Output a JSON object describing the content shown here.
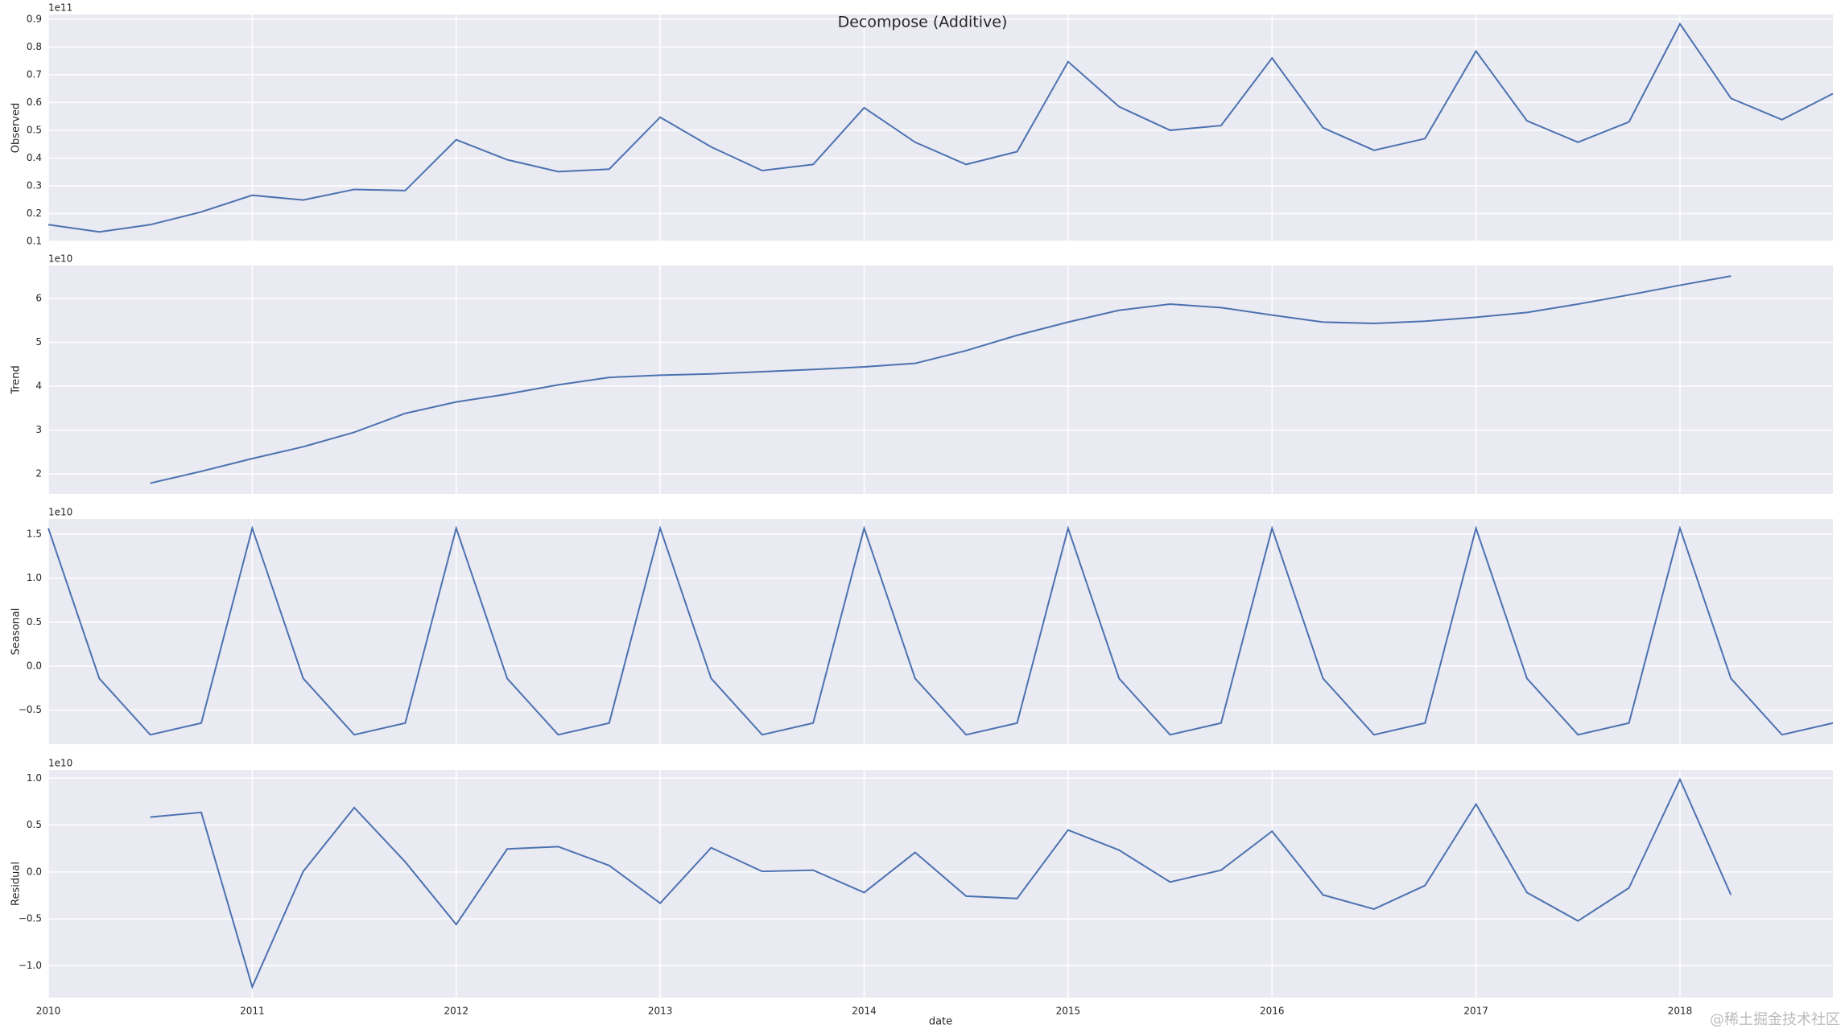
{
  "title": "Decompose (Additive)",
  "watermark": "@稀土掘金技术社区",
  "chart_data": [
    {
      "type": "line",
      "ylabel": "Observed",
      "offset_label": "1e11",
      "color": "#4c72b0",
      "grid": true,
      "x": [
        2010,
        2010.25,
        2010.5,
        2010.75,
        2011,
        2011.25,
        2011.5,
        2011.75,
        2012,
        2012.25,
        2012.5,
        2012.75,
        2013,
        2013.25,
        2013.5,
        2013.75,
        2014,
        2014.25,
        2014.5,
        2014.75,
        2015,
        2015.25,
        2015.5,
        2015.75,
        2016,
        2016.25,
        2016.5,
        2016.75,
        2017,
        2017.25,
        2017.5,
        2017.75,
        2018,
        2018.25,
        2018.5,
        2018.75
      ],
      "values": [
        0.16,
        0.134,
        0.16,
        0.206,
        0.266,
        0.249,
        0.287,
        0.283,
        0.466,
        0.394,
        0.351,
        0.36,
        0.547,
        0.44,
        0.355,
        0.377,
        0.581,
        0.457,
        0.377,
        0.423,
        0.747,
        0.585,
        0.5,
        0.517,
        0.76,
        0.509,
        0.428,
        0.47,
        0.785,
        0.534,
        0.457,
        0.53,
        0.883,
        0.615,
        0.538,
        0.632
      ],
      "xlim": [
        2010,
        2018.75
      ],
      "xticks": [
        2010,
        2011,
        2012,
        2013,
        2014,
        2015,
        2016,
        2017,
        2018
      ],
      "ylim": [
        0.1,
        0.917
      ],
      "yticks": [
        0.1,
        0.2,
        0.3,
        0.4,
        0.5,
        0.6,
        0.7,
        0.8,
        0.9
      ]
    },
    {
      "type": "line",
      "ylabel": "Trend",
      "offset_label": "1e10",
      "color": "#4c72b0",
      "grid": true,
      "x": [
        2010,
        2010.25,
        2010.5,
        2010.75,
        2011,
        2011.25,
        2011.5,
        2011.75,
        2012,
        2012.25,
        2012.5,
        2012.75,
        2013,
        2013.25,
        2013.5,
        2013.75,
        2014,
        2014.25,
        2014.5,
        2014.75,
        2015,
        2015.25,
        2015.5,
        2015.75,
        2016,
        2016.25,
        2016.5,
        2016.75,
        2017,
        2017.25,
        2017.5,
        2017.75,
        2018,
        2018.25,
        2018.5,
        2018.75
      ],
      "values": [
        null,
        null,
        1.79,
        2.06,
        2.35,
        2.62,
        2.95,
        3.38,
        3.64,
        3.82,
        4.03,
        4.2,
        4.25,
        4.28,
        4.33,
        4.38,
        4.44,
        4.52,
        4.81,
        5.16,
        5.46,
        5.73,
        5.87,
        5.79,
        5.62,
        5.46,
        5.43,
        5.48,
        5.57,
        5.68,
        5.87,
        6.08,
        6.3,
        6.51,
        null,
        null
      ],
      "xlim": [
        2010,
        2018.75
      ],
      "xticks": [
        2010,
        2011,
        2012,
        2013,
        2014,
        2015,
        2016,
        2017,
        2018
      ],
      "ylim": [
        1.544,
        6.75
      ],
      "yticks": [
        2,
        3,
        4,
        5,
        6
      ]
    },
    {
      "type": "line",
      "ylabel": "Seasonal",
      "offset_label": "1e10",
      "color": "#4c72b0",
      "grid": true,
      "x": [
        2010,
        2010.25,
        2010.5,
        2010.75,
        2011,
        2011.25,
        2011.5,
        2011.75,
        2012,
        2012.25,
        2012.5,
        2012.75,
        2013,
        2013.25,
        2013.5,
        2013.75,
        2014,
        2014.25,
        2014.5,
        2014.75,
        2015,
        2015.25,
        2015.5,
        2015.75,
        2016,
        2016.25,
        2016.5,
        2016.75,
        2017,
        2017.25,
        2017.5,
        2017.75,
        2018,
        2018.25,
        2018.5,
        2018.75
      ],
      "values": [
        1.567,
        -0.14,
        -0.78,
        -0.647,
        1.567,
        -0.14,
        -0.78,
        -0.647,
        1.567,
        -0.14,
        -0.78,
        -0.647,
        1.567,
        -0.14,
        -0.78,
        -0.647,
        1.567,
        -0.14,
        -0.78,
        -0.647,
        1.567,
        -0.14,
        -0.78,
        -0.647,
        1.567,
        -0.14,
        -0.78,
        -0.647,
        1.567,
        -0.14,
        -0.78,
        -0.647,
        1.567,
        -0.14,
        -0.78,
        -0.647
      ],
      "xlim": [
        2010,
        2018.75
      ],
      "xticks": [
        2010,
        2011,
        2012,
        2013,
        2014,
        2015,
        2016,
        2017,
        2018
      ],
      "ylim": [
        -0.887,
        1.673
      ],
      "yticks": [
        {
          "value": 1.5,
          "label": "1.5"
        },
        {
          "value": 1,
          "label": "1.0"
        },
        {
          "value": 0.5,
          "label": "0.5"
        },
        {
          "value": 0,
          "label": "0.0"
        },
        {
          "value": -0.5,
          "label": "−0.5"
        }
      ]
    },
    {
      "type": "line",
      "ylabel": "Residual",
      "offset_label": "1e10",
      "xlabel": "date",
      "color": "#4c72b0",
      "grid": true,
      "show_xtick_labels": true,
      "x": [
        2010,
        2010.25,
        2010.5,
        2010.75,
        2011,
        2011.25,
        2011.5,
        2011.75,
        2012,
        2012.25,
        2012.5,
        2012.75,
        2013,
        2013.25,
        2013.5,
        2013.75,
        2014,
        2014.25,
        2014.5,
        2014.75,
        2015,
        2015.25,
        2015.5,
        2015.75,
        2016,
        2016.25,
        2016.5,
        2016.75,
        2017,
        2017.25,
        2017.5,
        2017.75,
        2018,
        2018.25,
        2018.5,
        2018.75
      ],
      "values": [
        null,
        null,
        0.585,
        0.635,
        -1.226,
        0.006,
        0.686,
        0.107,
        -0.56,
        0.245,
        0.27,
        0.069,
        -0.333,
        0.258,
        0.006,
        0.019,
        -0.22,
        0.208,
        -0.258,
        -0.283,
        0.447,
        0.233,
        -0.107,
        0.019,
        0.434,
        -0.245,
        -0.396,
        -0.145,
        0.723,
        -0.22,
        -0.522,
        -0.17,
        0.987,
        -0.245,
        null,
        null
      ],
      "xlim": [
        2010,
        2018.75
      ],
      "xticks": [
        2010,
        2011,
        2012,
        2013,
        2014,
        2015,
        2016,
        2017,
        2018
      ],
      "ylim": [
        -1.34,
        1.088
      ],
      "yticks": [
        {
          "value": 1,
          "label": "1.0"
        },
        {
          "value": 0.5,
          "label": "0.5"
        },
        {
          "value": 0,
          "label": "0.0"
        },
        {
          "value": -0.5,
          "label": "−0.5"
        },
        {
          "value": -1,
          "label": "−1.0"
        }
      ]
    }
  ]
}
